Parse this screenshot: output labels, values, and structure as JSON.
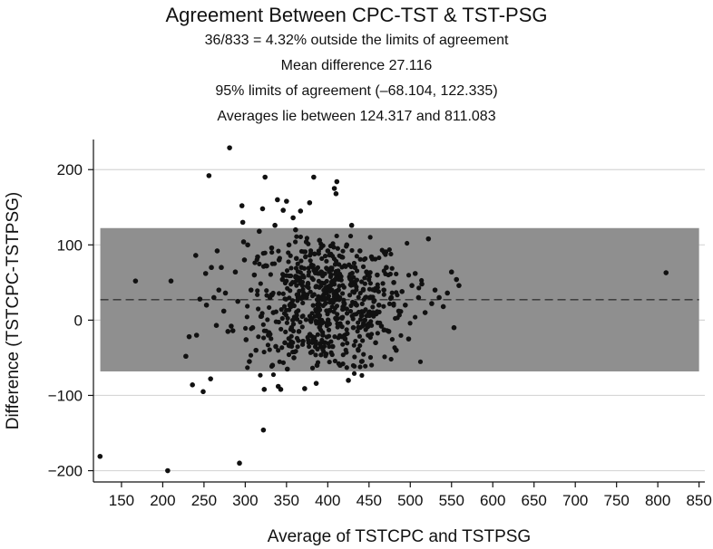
{
  "chart_data": {
    "type": "scatter",
    "title": "Agreement Between CPC-TST & TST-PSG",
    "subtitles": [
      "36/833 = 4.32% outside the limits of agreement",
      "Mean difference 27.116",
      "95% limits of agreement (–68.104, 122.335)",
      "Averages lie between 124.317 and 811.083"
    ],
    "xlabel": "Average of TSTCPC and TSTPSG",
    "ylabel": "Difference (TSTCPC-TSTPSG)",
    "xlim": [
      116,
      857
    ],
    "ylim": [
      -215,
      240
    ],
    "x_ticks": [
      150,
      200,
      250,
      300,
      350,
      400,
      450,
      500,
      550,
      600,
      650,
      700,
      750,
      800,
      850
    ],
    "y_ticks": [
      -200,
      -100,
      0,
      100,
      200
    ],
    "y_tick_labels": [
      "−200",
      "−100",
      "0",
      "100",
      "200"
    ],
    "grid": true,
    "band": {
      "lower": -68.104,
      "upper": 122.335,
      "x_from": 124.317,
      "x_to": 850,
      "color": "#8f8f8f"
    },
    "mean_line": {
      "value": 27.116,
      "style": "dashed",
      "color": "#333333"
    },
    "point_color": "#111111",
    "points": [
      [
        124,
        -181
      ],
      [
        167,
        52
      ],
      [
        206,
        -200
      ],
      [
        210,
        52
      ],
      [
        228,
        -48
      ],
      [
        232,
        -22
      ],
      [
        236,
        -86
      ],
      [
        240,
        86
      ],
      [
        241,
        -20
      ],
      [
        245,
        28
      ],
      [
        249,
        -95
      ],
      [
        252,
        62
      ],
      [
        253,
        20
      ],
      [
        256,
        192
      ],
      [
        258,
        -78
      ],
      [
        259,
        70
      ],
      [
        262,
        30
      ],
      [
        265,
        -7
      ],
      [
        266,
        92
      ],
      [
        268,
        40
      ],
      [
        271,
        70
      ],
      [
        274,
        12
      ],
      [
        276,
        36
      ],
      [
        279,
        -15
      ],
      [
        281,
        229
      ],
      [
        283,
        -8
      ],
      [
        285,
        -14
      ],
      [
        288,
        64
      ],
      [
        291,
        25
      ],
      [
        293,
        -190
      ],
      [
        296,
        152
      ],
      [
        297,
        130
      ],
      [
        298,
        104
      ],
      [
        299,
        80
      ],
      [
        301,
        -26
      ],
      [
        303,
        100
      ],
      [
        305,
        -55
      ],
      [
        307,
        40
      ],
      [
        309,
        -10
      ],
      [
        311,
        60
      ],
      [
        313,
        -40
      ],
      [
        315,
        84
      ],
      [
        317,
        118
      ],
      [
        319,
        5
      ],
      [
        321,
        148
      ],
      [
        322,
        -146
      ],
      [
        323,
        -92
      ],
      [
        324,
        190
      ],
      [
        326,
        72
      ],
      [
        328,
        -20
      ],
      [
        330,
        30
      ],
      [
        332,
        96
      ],
      [
        333,
        -60
      ],
      [
        334,
        10
      ],
      [
        336,
        126
      ],
      [
        337,
        -35
      ],
      [
        339,
        160
      ],
      [
        340,
        -88
      ],
      [
        341,
        80
      ],
      [
        343,
        -92
      ],
      [
        345,
        54
      ],
      [
        346,
        146
      ],
      [
        348,
        -30
      ],
      [
        350,
        158
      ],
      [
        351,
        -65
      ],
      [
        353,
        100
      ],
      [
        354,
        20
      ],
      [
        356,
        -10
      ],
      [
        358,
        136
      ],
      [
        359,
        -50
      ],
      [
        361,
        120
      ],
      [
        362,
        82
      ],
      [
        364,
        30
      ],
      [
        365,
        -15
      ],
      [
        367,
        145
      ],
      [
        368,
        70
      ],
      [
        370,
        -28
      ],
      [
        372,
        -91
      ],
      [
        374,
        104
      ],
      [
        376,
        48
      ],
      [
        378,
        156
      ],
      [
        379,
        0
      ],
      [
        381,
        -42
      ],
      [
        383,
        190
      ],
      [
        384,
        88
      ],
      [
        386,
        -84
      ],
      [
        387,
        -60
      ],
      [
        388,
        10
      ],
      [
        390,
        106
      ],
      [
        392,
        64
      ],
      [
        394,
        -20
      ],
      [
        396,
        30
      ],
      [
        398,
        -45
      ],
      [
        400,
        92
      ],
      [
        402,
        -5
      ],
      [
        404,
        60
      ],
      [
        406,
        -35
      ],
      [
        408,
        175
      ],
      [
        410,
        168
      ],
      [
        411,
        184
      ],
      [
        413,
        40
      ],
      [
        415,
        -60
      ],
      [
        417,
        84
      ],
      [
        419,
        15
      ],
      [
        421,
        -25
      ],
      [
        423,
        100
      ],
      [
        425,
        -80
      ],
      [
        427,
        55
      ],
      [
        429,
        126
      ],
      [
        431,
        -10
      ],
      [
        433,
        70
      ],
      [
        435,
        20
      ],
      [
        437,
        -40
      ],
      [
        439,
        92
      ],
      [
        441,
        -55
      ],
      [
        443,
        40
      ],
      [
        445,
        0
      ],
      [
        447,
        64
      ],
      [
        449,
        -20
      ],
      [
        451,
        30
      ],
      [
        453,
        84
      ],
      [
        455,
        10
      ],
      [
        458,
        -30
      ],
      [
        460,
        60
      ],
      [
        462,
        20
      ],
      [
        465,
        -8
      ],
      [
        468,
        40
      ],
      [
        471,
        70
      ],
      [
        474,
        -15
      ],
      [
        477,
        30
      ],
      [
        480,
        50
      ],
      [
        483,
        -40
      ],
      [
        486,
        12
      ],
      [
        490,
        38
      ],
      [
        494,
        20
      ],
      [
        498,
        -25
      ],
      [
        502,
        46
      ],
      [
        506,
        62
      ],
      [
        510,
        30
      ],
      [
        514,
        48
      ],
      [
        518,
        10
      ],
      [
        522,
        108
      ],
      [
        526,
        22
      ],
      [
        530,
        40
      ],
      [
        535,
        30
      ],
      [
        540,
        18
      ],
      [
        545,
        36
      ],
      [
        550,
        64
      ],
      [
        553,
        -10
      ],
      [
        556,
        54
      ],
      [
        559,
        46
      ],
      [
        810,
        63
      ]
    ],
    "cloud": {
      "center_x": 398,
      "center_y": 22,
      "spread_x": 48,
      "spread_y": 46,
      "x_range": [
        300,
        520
      ],
      "y_range": [
        -75,
        112
      ],
      "count": 640
    }
  }
}
